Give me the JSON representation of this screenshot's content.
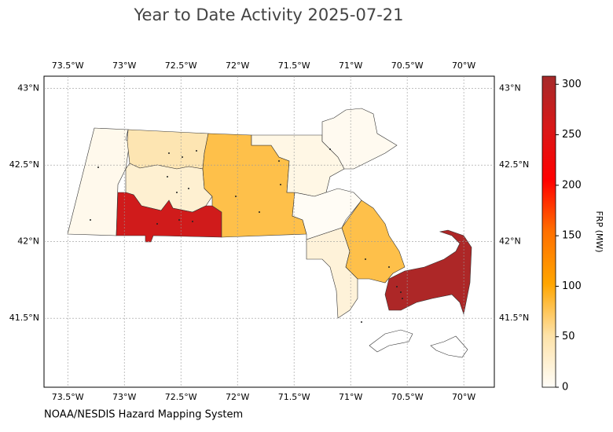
{
  "chart_data": {
    "type": "choropleth",
    "title": "Year to Date Activity 2025-07-21",
    "source": "NOAA/NESDIS Hazard Mapping System",
    "xlim": [
      -73.71,
      -69.73
    ],
    "ylim": [
      41.05,
      43.08
    ],
    "xticks": [
      {
        "value": -73.5,
        "label": "73.5°W"
      },
      {
        "value": -73,
        "label": "73°W"
      },
      {
        "value": -72.5,
        "label": "72.5°W"
      },
      {
        "value": -72,
        "label": "72°W"
      },
      {
        "value": -71.5,
        "label": "71.5°W"
      },
      {
        "value": -71,
        "label": "71°W"
      },
      {
        "value": -70.5,
        "label": "70.5°W"
      },
      {
        "value": -70,
        "label": "70°W"
      }
    ],
    "yticks": [
      {
        "value": 43,
        "label": "43°N"
      },
      {
        "value": 42.5,
        "label": "42.5°N"
      },
      {
        "value": 42,
        "label": "42°N"
      },
      {
        "value": 41.5,
        "label": "41.5°N"
      }
    ],
    "grid": true,
    "values": [
      8,
      45,
      25,
      265,
      80,
      12,
      5,
      2,
      20,
      80,
      300
    ],
    "colorbar": {
      "label": "FRP (MW)",
      "lim": [
        0,
        308
      ],
      "ticks": [
        0,
        50,
        100,
        150,
        200,
        250,
        300
      ],
      "colors": [
        "#fffdf8",
        "#fde2a8",
        "#ffa500",
        "#ff7000",
        "#ff0000",
        "#d81818",
        "#a52a2a"
      ]
    }
  }
}
